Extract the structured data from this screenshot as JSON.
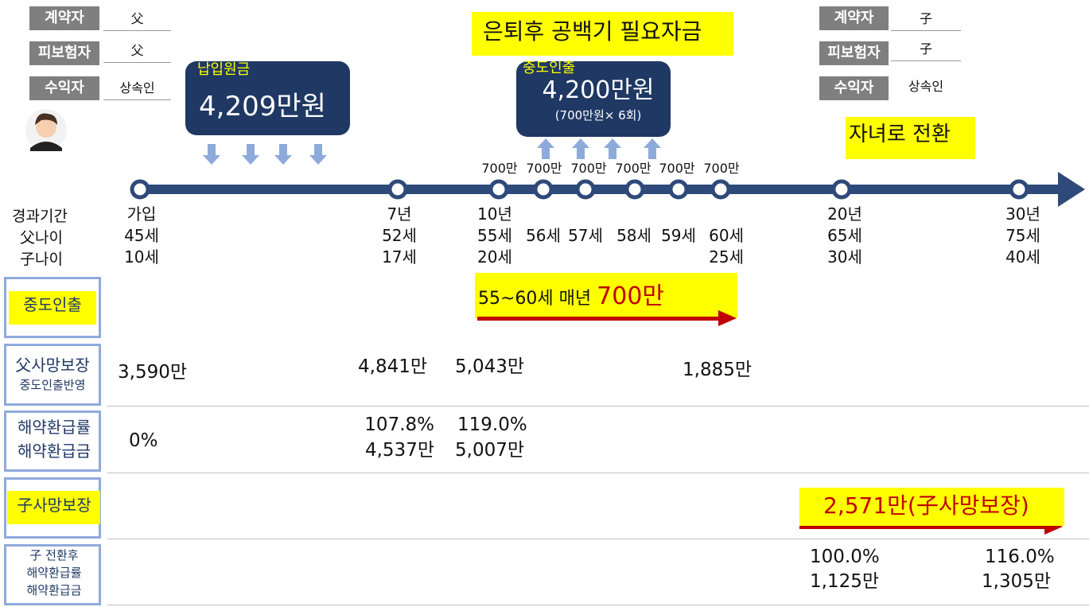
{
  "parent_info": [
    {
      "label": "계약자",
      "value": "父"
    },
    {
      "label": "피보험자",
      "value": "父"
    },
    {
      "label": "수익자",
      "value": "상속인"
    }
  ],
  "child_info": [
    {
      "label": "계약자",
      "value": "子"
    },
    {
      "label": "피보험자",
      "value": "子"
    },
    {
      "label": "수익자",
      "value": "상속인"
    }
  ],
  "title": "은퇴후 공백기 필요자금",
  "child_switch": "자녀로 전환",
  "premium_box": {
    "label": "납입원금",
    "amount": "4,209만원"
  },
  "withdrawal_box": {
    "label": "중도인출",
    "amount": "4,200만원",
    "detail": "(700만원× 6회)"
  },
  "withdrawal_amounts": [
    "700만",
    "700만",
    "700만",
    "700만",
    "700만",
    "700만"
  ],
  "row_header": [
    "경과기간",
    "父나이",
    "子나이"
  ],
  "timeline": [
    {
      "period": "가입",
      "father_age": "45세",
      "child_age": "10세"
    },
    {
      "period": "7년",
      "father_age": "52세",
      "child_age": "17세"
    },
    {
      "period": "10년",
      "father_age": "55세",
      "child_age": "20세"
    },
    {
      "father_age": "56세"
    },
    {
      "father_age": "57세"
    },
    {
      "father_age": "58세"
    },
    {
      "father_age": "59세"
    },
    {
      "father_age": "60세",
      "child_age": "25세"
    },
    {
      "period": "20년",
      "father_age": "65세",
      "child_age": "30세"
    },
    {
      "period": "30년",
      "father_age": "75세",
      "child_age": "40세"
    }
  ],
  "rows": {
    "withdrawal": {
      "label": "중도인출",
      "text": "55~60세 매년",
      "amount": "700만"
    },
    "father_death": {
      "label": [
        "父사망보장",
        "중도인출반영"
      ],
      "values": [
        "3,590만",
        "4,841만",
        "5,043만",
        "1,885만"
      ]
    },
    "surrender": {
      "label": [
        "해약환급률",
        "해약환급금"
      ],
      "values": [
        [
          "0%"
        ],
        [
          "107.8%",
          "4,537만"
        ],
        [
          "119.0%",
          "5,007만"
        ]
      ]
    },
    "child_death": {
      "label": "子사망보장",
      "value": "2,571만(子사망보장)"
    },
    "child_surrender": {
      "label": [
        "子 전환후",
        "해약환급률",
        "해약환급금"
      ],
      "values": [
        [
          "100.0%",
          "1,125만"
        ],
        [
          "116.0%",
          "1,305만"
        ]
      ]
    }
  }
}
